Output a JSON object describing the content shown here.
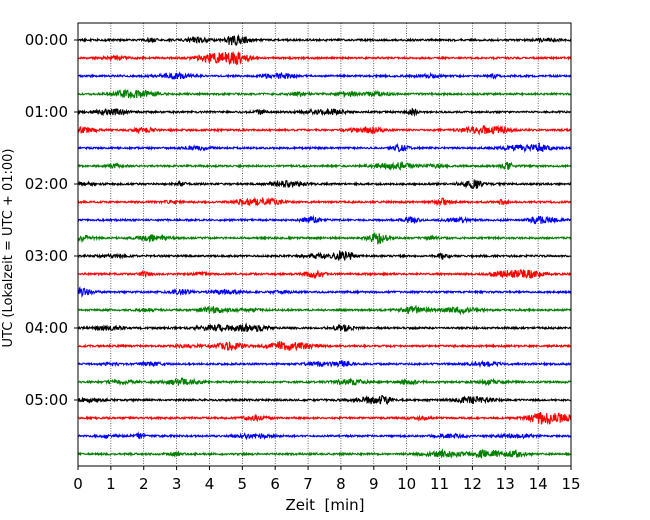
{
  "chart_data": {
    "type": "line",
    "subtype": "helicorder",
    "xlabel": "Zeit  [min]",
    "ylabel": "UTC (Lokalzeit = UTC + 01:00)",
    "xlim": [
      0,
      15
    ],
    "x_ticks": [
      0,
      1,
      2,
      3,
      4,
      5,
      6,
      7,
      8,
      9,
      10,
      11,
      12,
      13,
      14,
      15
    ],
    "x_tick_labels": [
      "0",
      "1",
      "2",
      "3",
      "4",
      "5",
      "6",
      "7",
      "8",
      "9",
      "10",
      "11",
      "12",
      "13",
      "14",
      "15"
    ],
    "y_tick_labels": [
      "00:00",
      "01:00",
      "02:00",
      "03:00",
      "04:00",
      "05:00"
    ],
    "y_tick_trace_index": [
      0,
      4,
      8,
      12,
      16,
      20
    ],
    "grid_x": true,
    "grid_y": false,
    "line_colors": [
      "#000000",
      "#ff0000",
      "#0000ff",
      "#008000"
    ],
    "traces": [
      {
        "start": "00:00",
        "color": "#000000"
      },
      {
        "start": "00:15",
        "color": "#ff0000"
      },
      {
        "start": "00:30",
        "color": "#0000ff"
      },
      {
        "start": "00:45",
        "color": "#008000"
      },
      {
        "start": "01:00",
        "color": "#000000"
      },
      {
        "start": "01:15",
        "color": "#ff0000"
      },
      {
        "start": "01:30",
        "color": "#0000ff"
      },
      {
        "start": "01:45",
        "color": "#008000"
      },
      {
        "start": "02:00",
        "color": "#000000"
      },
      {
        "start": "02:15",
        "color": "#ff0000"
      },
      {
        "start": "02:30",
        "color": "#0000ff"
      },
      {
        "start": "02:45",
        "color": "#008000"
      },
      {
        "start": "03:00",
        "color": "#000000"
      },
      {
        "start": "03:15",
        "color": "#ff0000"
      },
      {
        "start": "03:30",
        "color": "#0000ff"
      },
      {
        "start": "03:45",
        "color": "#008000"
      },
      {
        "start": "04:00",
        "color": "#000000"
      },
      {
        "start": "04:15",
        "color": "#ff0000"
      },
      {
        "start": "04:30",
        "color": "#0000ff"
      },
      {
        "start": "04:45",
        "color": "#008000"
      },
      {
        "start": "05:00",
        "color": "#000000"
      },
      {
        "start": "05:15",
        "color": "#ff0000"
      },
      {
        "start": "05:30",
        "color": "#0000ff"
      },
      {
        "start": "05:45",
        "color": "#008000"
      }
    ]
  }
}
